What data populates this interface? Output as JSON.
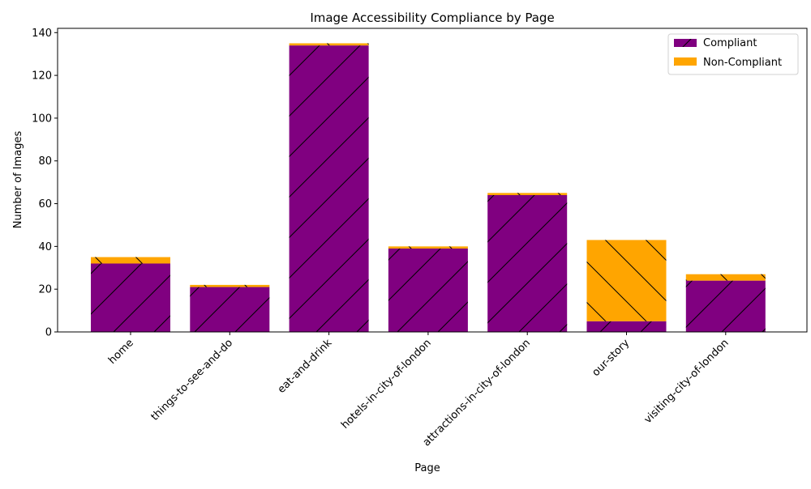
{
  "chart_data": {
    "type": "bar",
    "stacked": true,
    "title": "Image Accessibility Compliance by Page",
    "xlabel": "Page",
    "ylabel": "Number of Images",
    "categories": [
      "home",
      "things-to-see-and-do",
      "eat-and-drink",
      "hotels-in-city-of-london",
      "attractions-in-city-of-london",
      "our-story",
      "visiting-city-of-london"
    ],
    "series": [
      {
        "name": "Compliant",
        "color": "#800080",
        "hatch": "forward-slash",
        "values": [
          32,
          21,
          134,
          39,
          64,
          5,
          24
        ]
      },
      {
        "name": "Non-Compliant",
        "color": "#FFA500",
        "hatch": "back-slash",
        "values": [
          3,
          1,
          1,
          1,
          1,
          38,
          3
        ]
      }
    ],
    "ylim": [
      0,
      142
    ],
    "yticks": [
      "0",
      "20",
      "40",
      "60",
      "80",
      "100",
      "120",
      "140"
    ],
    "ytick_values": [
      0,
      20,
      40,
      60,
      80,
      100,
      120,
      140
    ],
    "grid": false,
    "legend_position": "top-right"
  }
}
